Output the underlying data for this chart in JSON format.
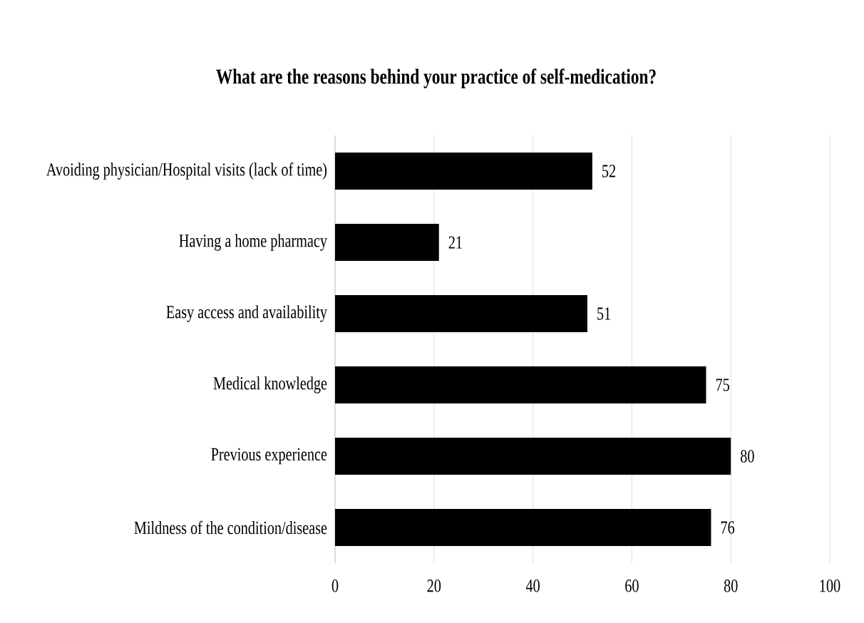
{
  "chart_data": {
    "type": "bar",
    "orientation": "horizontal",
    "title": "What are the reasons behind your practice of self-medication?",
    "categories": [
      "Avoiding physician/Hospital visits (lack of time)",
      "Having a home pharmacy",
      "Easy access and availability",
      "Medical knowledge",
      "Previous experience",
      "Mildness of the condition/disease"
    ],
    "values": [
      52,
      21,
      51,
      75,
      80,
      76
    ],
    "color": "#000000",
    "xlim": [
      0,
      100
    ],
    "xticks": [
      0,
      20,
      40,
      60,
      80,
      100
    ],
    "grid": "x",
    "data_labels": true
  }
}
